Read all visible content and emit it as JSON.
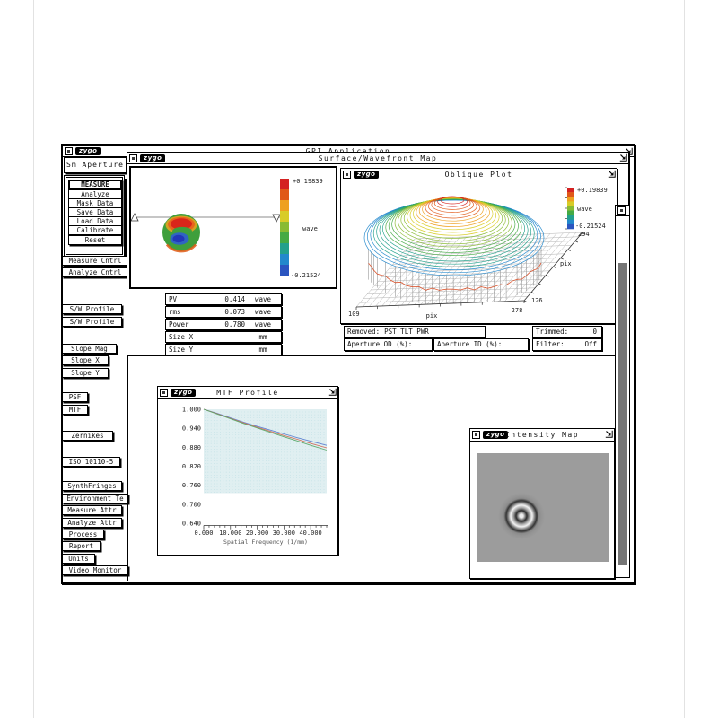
{
  "app": {
    "title": "GPI Application",
    "logo": "zygo"
  },
  "sidebar": {
    "panel_label": "Sm Aperture",
    "measure_group": [
      "MEASURE",
      "Analyze",
      "Mask Data",
      "Save Data",
      "Load Data",
      "Calibrate",
      "Reset"
    ],
    "control_buttons": [
      "Measure Cntrl",
      "Analyze Cntrl"
    ],
    "profile_buttons": [
      "S/W Profile",
      "S/W Profile"
    ],
    "slope_buttons": [
      "Slope Mag",
      "Slope X",
      "Slope Y"
    ],
    "transfer_buttons": [
      "PSF",
      "MTF"
    ],
    "zernikes_button": "Zernikes",
    "iso_button": "ISO 10110-5",
    "bottom_buttons": [
      "SynthFringes",
      "Environment Te",
      "Measure Attr",
      "Analyze Attr",
      "Process",
      "Report",
      "Units",
      "Video Monitor"
    ]
  },
  "surface_window": {
    "title": "Surface/Wavefront Map",
    "results": [
      {
        "label": "PV",
        "value": "0.414",
        "unit": "wave"
      },
      {
        "label": "rms",
        "value": "0.073",
        "unit": "wave"
      },
      {
        "label": "Power",
        "value": "0.780",
        "unit": "wave"
      },
      {
        "label": "Size X",
        "value": "",
        "unit": "mm"
      },
      {
        "label": "Size Y",
        "value": "",
        "unit": "mm"
      }
    ],
    "removed_label": "Removed:",
    "removed_value": "PST TLT PWR",
    "trimmed_label": "Trimmed:",
    "trimmed_value": "0",
    "aperture_od_label": "Aperture OD (%):",
    "aperture_od_value": "",
    "aperture_id_label": "Aperture ID (%):",
    "aperture_id_value": "",
    "filter_label": "Filter:",
    "filter_value": "Off"
  },
  "oblique_window": {
    "title": "Oblique Plot"
  },
  "mtf_window": {
    "title": "MTF Profile"
  },
  "intensity_window": {
    "title": "Intensity Map"
  },
  "chart_data": [
    {
      "id": "mtf_profile",
      "type": "line",
      "title": "MTF Profile",
      "xlabel": "Spatial Frequency (1/mm)",
      "xlim": [
        0,
        46
      ],
      "ylim": [
        0.64,
        1.0
      ],
      "x_ticks": [
        0,
        10,
        20,
        30,
        40
      ],
      "x_tick_labels": [
        "0.000",
        "10.000",
        "20.000",
        "30.000",
        "40.000"
      ],
      "x_minor_step": 2,
      "y_ticks": [
        1.0,
        0.94,
        0.88,
        0.82,
        0.76,
        0.7,
        0.64
      ],
      "y_tick_labels": [
        "1.000",
        "0.940",
        "0.880",
        "0.820",
        "0.760",
        "0.700",
        "0.640"
      ],
      "grid_region": {
        "fill": "#e0eff1",
        "y_from": 0.735,
        "y_to": 1.0
      },
      "legend": "none",
      "series": [
        {
          "name": "mtf-blue",
          "color": "#5b7fd0",
          "x": [
            0,
            5,
            10,
            15,
            20,
            25,
            30,
            35,
            40,
            46
          ],
          "y": [
            1.0,
            0.987,
            0.973,
            0.959,
            0.946,
            0.934,
            0.922,
            0.91,
            0.899,
            0.886
          ]
        },
        {
          "name": "mtf-red",
          "color": "#d06a55",
          "x": [
            0,
            5,
            10,
            15,
            20,
            25,
            30,
            35,
            40,
            46
          ],
          "y": [
            1.0,
            0.986,
            0.971,
            0.957,
            0.943,
            0.93,
            0.917,
            0.905,
            0.892,
            0.878
          ]
        },
        {
          "name": "mtf-green",
          "color": "#58a868",
          "x": [
            0,
            5,
            10,
            15,
            20,
            25,
            30,
            35,
            40,
            46
          ],
          "y": [
            1.0,
            0.985,
            0.97,
            0.955,
            0.941,
            0.927,
            0.913,
            0.9,
            0.886,
            0.871
          ]
        }
      ]
    },
    {
      "id": "oblique_plot",
      "type": "surface_3d",
      "title": "Oblique Plot",
      "shape": "dome",
      "x_axis": {
        "label": "pix",
        "min": "109",
        "max": "278"
      },
      "depth_axis": {
        "label": "pix",
        "min": "126",
        "max": "294"
      },
      "z_scale": {
        "max": "+0.19839",
        "unit": "wave",
        "min": "-0.21524"
      },
      "colormap": [
        "#d42222",
        "#e05818",
        "#eea020",
        "#d8cc28",
        "#88bb33",
        "#44aa44",
        "#22a08c",
        "#2288cc",
        "#2b55c0"
      ]
    },
    {
      "id": "surface_map",
      "type": "heatmap",
      "title": "Surface/Wavefront Map",
      "z_scale": {
        "max": "+0.19839",
        "unit": "wave",
        "min": "-0.21524"
      },
      "features": "circular pupil: green base, red upper crescent, blue lower-center lobe, red-orange bottom rim, horizontal slice line with triangle markers",
      "colormap": [
        "#d42222",
        "#e05818",
        "#eea020",
        "#d8cc28",
        "#88bb33",
        "#44aa44",
        "#22a08c",
        "#2288cc",
        "#2b55c0"
      ]
    }
  ]
}
